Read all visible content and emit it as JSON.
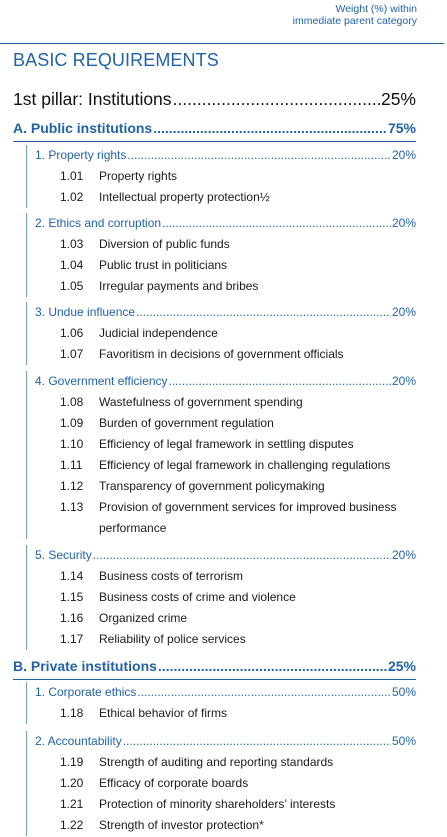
{
  "header": {
    "weight_line1": "Weight (%) within",
    "weight_line2": "immediate parent category",
    "title": "BASIC REQUIREMENTS"
  },
  "pillar": {
    "label": "1st pillar: Institutions",
    "pct": "25%"
  },
  "sections": [
    {
      "label": "A. Public institutions",
      "pct": "75%",
      "subsections": [
        {
          "label": "1. Property rights",
          "pct": "20%",
          "items": [
            {
              "num": "1.01",
              "text": "Property rights"
            },
            {
              "num": "1.02",
              "text": "Intellectual property protection½"
            }
          ]
        },
        {
          "label": "2. Ethics and corruption",
          "pct": "20%",
          "items": [
            {
              "num": "1.03",
              "text": "Diversion of public funds"
            },
            {
              "num": "1.04",
              "text": "Public trust in politicians"
            },
            {
              "num": "1.05",
              "text": "Irregular payments and bribes"
            }
          ]
        },
        {
          "label": "3. Undue influence",
          "pct": "20%",
          "items": [
            {
              "num": "1.06",
              "text": "Judicial independence"
            },
            {
              "num": "1.07",
              "text": "Favoritism in decisions of government officials"
            }
          ]
        },
        {
          "label": "4. Government efficiency",
          "pct": "20%",
          "items": [
            {
              "num": "1.08",
              "text": "Wastefulness of government spending"
            },
            {
              "num": "1.09",
              "text": "Burden of government regulation"
            },
            {
              "num": "1.10",
              "text": "Efficiency of legal framework in settling disputes"
            },
            {
              "num": "1.11",
              "text": "Efficiency of legal framework in challenging regulations"
            },
            {
              "num": "1.12",
              "text": "Transparency of government policymaking"
            },
            {
              "num": "1.13",
              "text": "Provision of government services for improved business performance"
            }
          ]
        },
        {
          "label": "5. Security",
          "pct": "20%",
          "items": [
            {
              "num": "1.14",
              "text": "Business costs of terrorism"
            },
            {
              "num": "1.15",
              "text": "Business costs of crime and violence"
            },
            {
              "num": "1.16",
              "text": "Organized crime"
            },
            {
              "num": "1.17",
              "text": "Reliability of police services"
            }
          ]
        }
      ]
    },
    {
      "label": "B. Private institutions",
      "pct": "25%",
      "subsections": [
        {
          "label": "1. Corporate ethics",
          "pct": "50%",
          "items": [
            {
              "num": "1.18",
              "text": "Ethical behavior of firms"
            }
          ]
        },
        {
          "label": "2. Accountability",
          "pct": "50%",
          "items": [
            {
              "num": "1.19",
              "text": "Strength of auditing and reporting standards"
            },
            {
              "num": "1.20",
              "text": "Efficacy of corporate boards"
            },
            {
              "num": "1.21",
              "text": "Protection of minority shareholders’ interests"
            },
            {
              "num": "1.22",
              "text": "Strength of investor protection*"
            }
          ]
        }
      ]
    }
  ]
}
